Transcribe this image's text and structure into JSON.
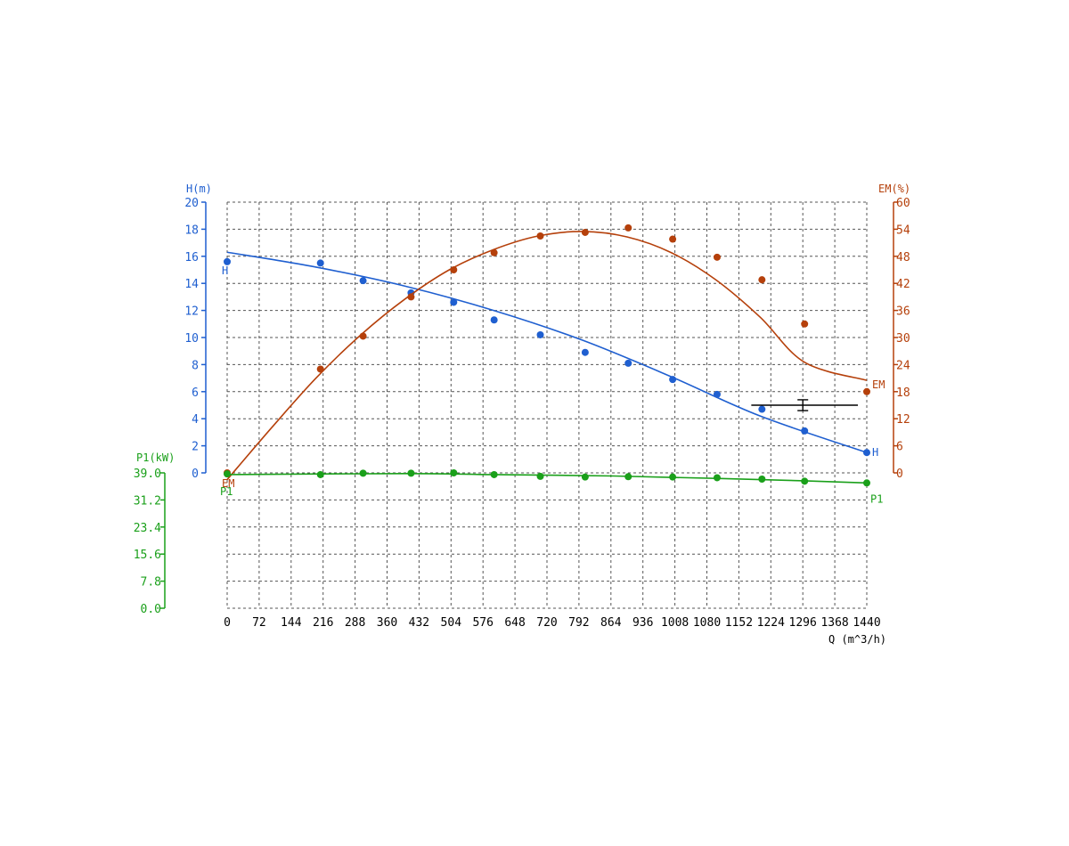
{
  "colors": {
    "h": "#1f5fd0",
    "em": "#b5400b",
    "p1": "#1aa01a",
    "grid": "#555555",
    "axis": "#000000"
  },
  "chart_data": {
    "type": "scatter",
    "x_axis": {
      "label": "Q (m^3/h)",
      "ticks": [
        "0",
        "72",
        "144",
        "216",
        "288",
        "360",
        "432",
        "504",
        "576",
        "648",
        "720",
        "792",
        "864",
        "936",
        "1008",
        "1080",
        "1152",
        "1224",
        "1296",
        "1368",
        "1440"
      ],
      "range": [
        0,
        1440
      ]
    },
    "h_axis": {
      "label": "H(m)",
      "ticks": [
        "0",
        "2",
        "4",
        "6",
        "8",
        "10",
        "12",
        "14",
        "16",
        "18",
        "20"
      ],
      "range": [
        0,
        20
      ]
    },
    "em_axis": {
      "label": "EM(%)",
      "ticks": [
        "0",
        "6",
        "12",
        "18",
        "24",
        "30",
        "36",
        "42",
        "48",
        "54",
        "60"
      ],
      "range": [
        0,
        60
      ]
    },
    "p1_axis": {
      "label": "P1(kW)",
      "ticks": [
        "0.0",
        "7.8",
        "15.6",
        "23.4",
        "31.2",
        "39.0"
      ],
      "range": [
        0,
        39
      ]
    },
    "grid": true,
    "series": [
      {
        "key": "h",
        "axis": "h",
        "start_label": "H",
        "end_label": "H",
        "points": [
          [
            0,
            15.6
          ],
          [
            210,
            15.5
          ],
          [
            306,
            14.2
          ],
          [
            414,
            13.3
          ],
          [
            510,
            12.6
          ],
          [
            601,
            11.3
          ],
          [
            705,
            10.2
          ],
          [
            806,
            8.9
          ],
          [
            903,
            8.1
          ],
          [
            1003,
            6.9
          ],
          [
            1103,
            5.8
          ],
          [
            1204,
            4.7
          ],
          [
            1300,
            3.1
          ],
          [
            1440,
            1.5
          ]
        ],
        "fit": [
          [
            0,
            16.3
          ],
          [
            200,
            15.2
          ],
          [
            400,
            13.8
          ],
          [
            600,
            12.0
          ],
          [
            800,
            9.8
          ],
          [
            1000,
            7.1
          ],
          [
            1200,
            4.2
          ],
          [
            1440,
            1.5
          ]
        ]
      },
      {
        "key": "em",
        "axis": "em",
        "start_label": "EM",
        "end_label": "EM",
        "points": [
          [
            0,
            0
          ],
          [
            210,
            23
          ],
          [
            306,
            30.3
          ],
          [
            414,
            39
          ],
          [
            510,
            45
          ],
          [
            601,
            48.8
          ],
          [
            705,
            52.5
          ],
          [
            806,
            53.3
          ],
          [
            903,
            54.3
          ],
          [
            1003,
            51.8
          ],
          [
            1103,
            47.8
          ],
          [
            1204,
            42.8
          ],
          [
            1300,
            33
          ],
          [
            1440,
            18
          ]
        ],
        "fit": [
          [
            0,
            -1.5
          ],
          [
            100,
            10
          ],
          [
            200,
            21
          ],
          [
            300,
            30.5
          ],
          [
            400,
            38.5
          ],
          [
            500,
            45
          ],
          [
            600,
            49.5
          ],
          [
            700,
            52.5
          ],
          [
            800,
            53.5
          ],
          [
            900,
            52.3
          ],
          [
            1000,
            48.8
          ],
          [
            1100,
            42.8
          ],
          [
            1200,
            34.5
          ],
          [
            1300,
            24.5
          ],
          [
            1440,
            20.5
          ]
        ]
      },
      {
        "key": "p1",
        "axis": "p1",
        "start_label": "P1",
        "end_label": "P1",
        "points": [
          [
            0,
            38.7
          ],
          [
            210,
            38.5
          ],
          [
            306,
            38.9
          ],
          [
            414,
            38.9
          ],
          [
            510,
            39
          ],
          [
            601,
            38.5
          ],
          [
            705,
            38
          ],
          [
            806,
            37.8
          ],
          [
            903,
            37.9
          ],
          [
            1003,
            37.8
          ],
          [
            1103,
            37.6
          ],
          [
            1204,
            37.2
          ],
          [
            1300,
            36.6
          ],
          [
            1440,
            36.1
          ]
        ],
        "fit": [
          [
            0,
            38.5
          ],
          [
            400,
            38.8
          ],
          [
            600,
            38.5
          ],
          [
            870,
            38.1
          ],
          [
            1100,
            37.4
          ],
          [
            1300,
            36.7
          ],
          [
            1440,
            36.1
          ]
        ]
      }
    ],
    "operating_point": {
      "x": 1296,
      "h": 5.0,
      "x_range": [
        1180,
        1420
      ],
      "h_range": [
        4.6,
        5.4
      ]
    }
  }
}
